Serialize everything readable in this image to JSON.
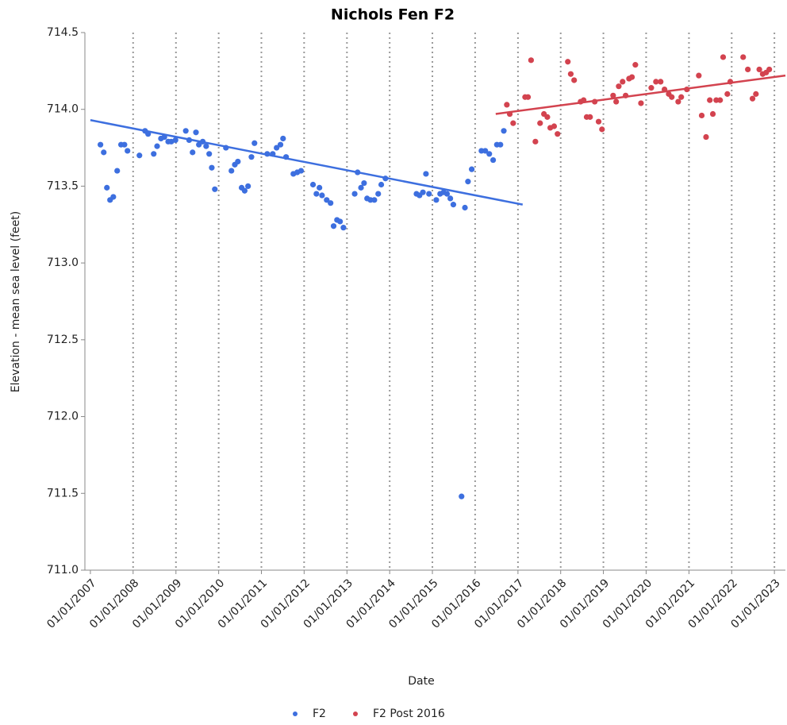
{
  "chart_data": {
    "type": "scatter",
    "title": "Nichols Fen F2",
    "x_label": "Date",
    "y_label": "Elevation - mean sea level (feet)",
    "xlim": [
      "2006-11-15",
      "2023-04-05"
    ],
    "ylim": [
      711,
      714.5
    ],
    "xticks": [
      {
        "value": "2007-01-01",
        "label": "01/01/2007"
      },
      {
        "value": "2008-01-01",
        "label": "01/01/2008"
      },
      {
        "value": "2009-01-01",
        "label": "01/01/2009"
      },
      {
        "value": "2010-01-01",
        "label": "01/01/2010"
      },
      {
        "value": "2011-01-01",
        "label": "01/01/2011"
      },
      {
        "value": "2012-01-01",
        "label": "01/01/2012"
      },
      {
        "value": "2013-01-01",
        "label": "01/01/2013"
      },
      {
        "value": "2014-01-01",
        "label": "01/01/2014"
      },
      {
        "value": "2015-01-01",
        "label": "01/01/2015"
      },
      {
        "value": "2016-01-01",
        "label": "01/01/2016"
      },
      {
        "value": "2017-01-01",
        "label": "01/01/2017"
      },
      {
        "value": "2018-01-01",
        "label": "01/01/2018"
      },
      {
        "value": "2019-01-01",
        "label": "01/01/2019"
      },
      {
        "value": "2020-01-01",
        "label": "01/01/2020"
      },
      {
        "value": "2021-01-01",
        "label": "01/01/2021"
      },
      {
        "value": "2022-01-01",
        "label": "01/01/2022"
      },
      {
        "value": "2023-01-01",
        "label": "01/01/2023"
      }
    ],
    "yticks": [
      {
        "value": 711,
        "label": "711.0"
      },
      {
        "value": 711.5,
        "label": "711.5"
      },
      {
        "value": 712,
        "label": "712.0"
      },
      {
        "value": 712.5,
        "label": "712.5"
      },
      {
        "value": 713,
        "label": "713.0"
      },
      {
        "value": 713.5,
        "label": "713.5"
      },
      {
        "value": 714,
        "label": "714.0"
      },
      {
        "value": 714.5,
        "label": "714.5"
      }
    ],
    "grid": "x",
    "series": [
      {
        "name": "F2",
        "color": "#3d6fdf",
        "x": [
          "2007-03-28",
          "2007-04-25",
          "2007-05-22",
          "2007-06-18",
          "2007-07-16",
          "2007-08-18",
          "2007-09-20",
          "2007-10-19",
          "2007-11-14",
          "2008-02-24",
          "2008-04-12",
          "2008-05-08",
          "2008-06-25",
          "2008-07-24",
          "2008-08-26",
          "2008-09-24",
          "2008-10-27",
          "2008-11-22",
          "2008-12-28",
          "2009-03-26",
          "2009-04-24",
          "2009-05-23",
          "2009-06-21",
          "2009-07-16",
          "2009-08-18",
          "2009-09-16",
          "2009-10-12",
          "2009-11-03",
          "2009-11-29",
          "2010-03-04",
          "2010-04-20",
          "2010-05-19",
          "2010-06-14",
          "2010-07-16",
          "2010-08-11",
          "2010-09-09",
          "2010-10-08",
          "2010-11-03",
          "2011-02-20",
          "2011-04-08",
          "2011-05-11",
          "2011-06-13",
          "2011-07-05",
          "2011-07-31",
          "2011-10-01",
          "2011-11-03",
          "2011-12-06",
          "2012-03-17",
          "2012-04-15",
          "2012-05-11",
          "2012-06-02",
          "2012-07-12",
          "2012-08-14",
          "2012-09-09",
          "2012-10-08",
          "2012-11-03",
          "2012-12-02",
          "2013-03-08",
          "2013-04-02",
          "2013-05-01",
          "2013-05-27",
          "2013-06-22",
          "2013-07-21",
          "2013-08-23",
          "2013-09-25",
          "2013-10-21",
          "2013-11-26",
          "2014-08-18",
          "2014-09-13",
          "2014-10-12",
          "2014-11-07",
          "2014-12-03",
          "2015-02-03",
          "2015-03-08",
          "2015-04-06",
          "2015-05-06",
          "2015-06-03",
          "2015-06-29",
          "2015-09-07",
          "2015-10-06",
          "2015-11-01",
          "2015-12-03",
          "2016-02-24",
          "2016-03-28",
          "2016-05-01",
          "2016-06-03",
          "2016-07-05",
          "2016-08-04",
          "2016-09-02"
        ],
        "values": [
          713.77,
          713.72,
          713.49,
          713.41,
          713.43,
          713.6,
          713.77,
          713.77,
          713.73,
          713.7,
          713.86,
          713.84,
          713.71,
          713.76,
          713.81,
          713.82,
          713.79,
          713.79,
          713.8,
          713.86,
          713.8,
          713.72,
          713.85,
          713.77,
          713.79,
          713.76,
          713.71,
          713.62,
          713.48,
          713.75,
          713.6,
          713.64,
          713.66,
          713.49,
          713.47,
          713.5,
          713.69,
          713.78,
          713.71,
          713.71,
          713.75,
          713.77,
          713.81,
          713.69,
          713.58,
          713.59,
          713.6,
          713.51,
          713.45,
          713.49,
          713.44,
          713.41,
          713.39,
          713.24,
          713.28,
          713.27,
          713.23,
          713.45,
          713.59,
          713.49,
          713.52,
          713.42,
          713.41,
          713.41,
          713.45,
          713.51,
          713.55,
          713.45,
          713.44,
          713.46,
          713.58,
          713.45,
          713.41,
          713.45,
          713.46,
          713.45,
          713.42,
          713.38,
          711.48,
          713.36,
          713.53,
          713.61,
          713.73,
          713.73,
          713.71,
          713.67,
          713.77,
          713.77,
          713.86
        ],
        "trend": {
          "x": [
            "2007-01-01",
            "2017-02-10"
          ],
          "values": [
            713.93,
            713.38
          ]
        }
      },
      {
        "name": "F2 Post 2016",
        "color": "#d3434f",
        "x": [
          "2016-09-28",
          "2016-10-23",
          "2016-11-21",
          "2017-03-03",
          "2017-03-28",
          "2017-04-23",
          "2017-05-30",
          "2017-07-09",
          "2017-08-11",
          "2017-09-09",
          "2017-10-04",
          "2017-11-06",
          "2017-12-05",
          "2018-03-03",
          "2018-03-28",
          "2018-04-26",
          "2018-06-20",
          "2018-07-16",
          "2018-08-11",
          "2018-09-09",
          "2018-10-19",
          "2018-11-21",
          "2018-12-20",
          "2019-03-25",
          "2019-04-20",
          "2019-05-12",
          "2019-06-14",
          "2019-07-10",
          "2019-08-08",
          "2019-09-02",
          "2019-10-01",
          "2019-11-18",
          "2020-02-14",
          "2020-03-25",
          "2020-05-04",
          "2020-06-06",
          "2020-07-12",
          "2020-08-07",
          "2020-10-01",
          "2020-10-27",
          "2020-12-14",
          "2021-03-26",
          "2021-04-20",
          "2021-05-27",
          "2021-06-28",
          "2021-07-24",
          "2021-08-22",
          "2021-09-24",
          "2021-10-20",
          "2021-11-25",
          "2021-12-20",
          "2022-04-09",
          "2022-05-19",
          "2022-06-28",
          "2022-07-27",
          "2022-08-25",
          "2022-09-23",
          "2022-10-23",
          "2022-11-18"
        ],
        "values": [
          714.03,
          713.97,
          713.91,
          714.08,
          714.08,
          714.32,
          713.79,
          713.91,
          713.97,
          713.95,
          713.88,
          713.89,
          713.84,
          714.31,
          714.23,
          714.19,
          714.05,
          714.06,
          713.95,
          713.95,
          714.05,
          713.92,
          713.87,
          714.09,
          714.05,
          714.15,
          714.18,
          714.09,
          714.2,
          714.21,
          714.29,
          714.04,
          714.14,
          714.18,
          714.18,
          714.13,
          714.1,
          714.08,
          714.05,
          714.08,
          714.13,
          714.22,
          713.96,
          713.82,
          714.06,
          713.97,
          714.06,
          714.06,
          714.34,
          714.1,
          714.18,
          714.34,
          714.26,
          714.07,
          714.1,
          714.26,
          714.23,
          714.24,
          714.26
        ],
        "trend": {
          "x": [
            "2016-06-25",
            "2023-04-05"
          ],
          "values": [
            713.97,
            714.22
          ]
        }
      }
    ]
  }
}
